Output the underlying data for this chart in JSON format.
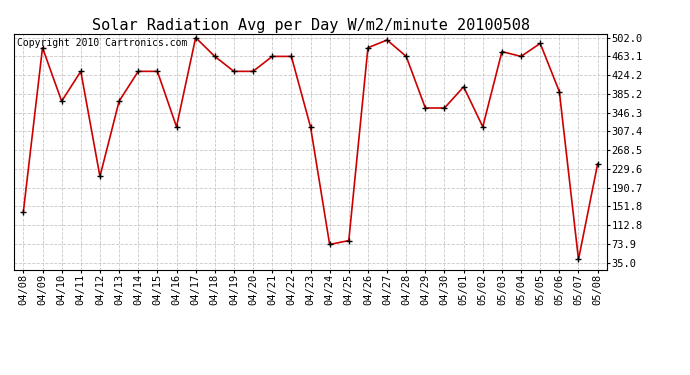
{
  "title": "Solar Radiation Avg per Day W/m2/minute 20100508",
  "copyright_text": "Copyright 2010 Cartronics.com",
  "dates": [
    "04/08",
    "04/09",
    "04/10",
    "04/11",
    "04/12",
    "04/13",
    "04/14",
    "04/15",
    "04/16",
    "04/17",
    "04/18",
    "04/19",
    "04/20",
    "04/21",
    "04/22",
    "04/23",
    "04/24",
    "04/25",
    "04/26",
    "04/27",
    "04/28",
    "04/29",
    "04/30",
    "05/01",
    "05/02",
    "05/03",
    "05/04",
    "05/05",
    "05/06",
    "05/07",
    "05/08"
  ],
  "values": [
    141,
    481,
    370,
    432,
    214,
    370,
    432,
    432,
    317,
    502,
    463,
    432,
    432,
    463,
    463,
    317,
    73,
    81,
    481,
    497,
    463,
    356,
    356,
    400,
    317,
    473,
    463,
    490,
    390,
    42,
    240
  ],
  "line_color": "#cc0000",
  "bg_color": "#ffffff",
  "grid_color": "#bbbbbb",
  "yticks": [
    35.0,
    73.9,
    112.8,
    151.8,
    190.7,
    229.6,
    268.5,
    307.4,
    346.3,
    385.2,
    424.2,
    463.1,
    502.0
  ],
  "ylim_min": 35.0,
  "ylim_max": 502.0,
  "title_fontsize": 11,
  "copyright_fontsize": 7,
  "tick_fontsize": 7.5
}
